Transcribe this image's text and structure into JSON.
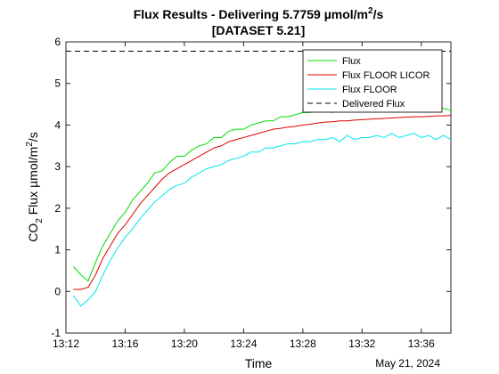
{
  "chart_data": {
    "type": "line",
    "title_main": "Flux Results - Delivering 5.7759 µmol/m",
    "title_sup": "2",
    "title_tail": "/s",
    "title_line2": "[DATASET 5.21]",
    "xlabel": "Time",
    "date_label": "May 21, 2024",
    "ylabel_parts": [
      "CO",
      "2",
      " Flux µmol/m",
      "2",
      "/s"
    ],
    "xlim": [
      "13:12",
      "13:38"
    ],
    "ylim": [
      -1,
      6
    ],
    "x_ticks": [
      "13:12",
      "13:16",
      "13:20",
      "13:24",
      "13:28",
      "13:32",
      "13:36"
    ],
    "y_ticks": [
      -1,
      0,
      1,
      2,
      3,
      4,
      5,
      6
    ],
    "legend_position": "top-right",
    "grid": false,
    "delivered_flux": 5.7759,
    "series": [
      {
        "name": "Flux",
        "color": "#00dd00",
        "points": [
          [
            "13:12:30",
            0.6
          ],
          [
            "13:13:00",
            0.4
          ],
          [
            "13:13:30",
            0.25
          ],
          [
            "13:14:00",
            0.7
          ],
          [
            "13:14:30",
            1.1
          ],
          [
            "13:15:00",
            1.4
          ],
          [
            "13:15:30",
            1.7
          ],
          [
            "13:16:00",
            1.9
          ],
          [
            "13:16:30",
            2.2
          ],
          [
            "13:17:00",
            2.4
          ],
          [
            "13:17:30",
            2.6
          ],
          [
            "13:18:00",
            2.85
          ],
          [
            "13:18:30",
            2.9
          ],
          [
            "13:19:00",
            3.1
          ],
          [
            "13:19:30",
            3.25
          ],
          [
            "13:20:00",
            3.25
          ],
          [
            "13:20:30",
            3.4
          ],
          [
            "13:21:00",
            3.5
          ],
          [
            "13:21:30",
            3.55
          ],
          [
            "13:22:00",
            3.7
          ],
          [
            "13:22:30",
            3.7
          ],
          [
            "13:23:00",
            3.85
          ],
          [
            "13:23:30",
            3.9
          ],
          [
            "13:24:00",
            3.9
          ],
          [
            "13:24:30",
            4.0
          ],
          [
            "13:25:00",
            4.05
          ],
          [
            "13:25:30",
            4.1
          ],
          [
            "13:26:00",
            4.1
          ],
          [
            "13:26:30",
            4.2
          ],
          [
            "13:27:00",
            4.2
          ],
          [
            "13:27:30",
            4.25
          ],
          [
            "13:28:00",
            4.3
          ],
          [
            "13:28:30",
            4.3
          ],
          [
            "13:29:00",
            4.35
          ],
          [
            "13:29:30",
            4.35
          ],
          [
            "13:30:00",
            4.3
          ],
          [
            "13:30:30",
            4.4
          ],
          [
            "13:31:00",
            4.4
          ],
          [
            "13:31:30",
            4.35
          ],
          [
            "13:32:00",
            4.45
          ],
          [
            "13:32:30",
            4.35
          ],
          [
            "13:33:00",
            4.4
          ],
          [
            "13:33:30",
            4.5
          ],
          [
            "13:34:00",
            4.4
          ],
          [
            "13:34:30",
            4.45
          ],
          [
            "13:35:00",
            4.4
          ],
          [
            "13:35:30",
            4.45
          ],
          [
            "13:36:00",
            4.4
          ],
          [
            "13:36:30",
            4.5
          ],
          [
            "13:37:00",
            4.45
          ],
          [
            "13:37:30",
            4.4
          ],
          [
            "13:38:00",
            4.35
          ]
        ]
      },
      {
        "name": "Flux FLOOR LICOR",
        "color": "#dd0000",
        "points": [
          [
            "13:12:30",
            0.05
          ],
          [
            "13:13:00",
            0.05
          ],
          [
            "13:13:30",
            0.1
          ],
          [
            "13:14:00",
            0.4
          ],
          [
            "13:14:30",
            0.8
          ],
          [
            "13:15:00",
            1.1
          ],
          [
            "13:15:30",
            1.4
          ],
          [
            "13:16:00",
            1.6
          ],
          [
            "13:16:30",
            1.85
          ],
          [
            "13:17:00",
            2.1
          ],
          [
            "13:17:30",
            2.3
          ],
          [
            "13:18:00",
            2.5
          ],
          [
            "13:18:30",
            2.7
          ],
          [
            "13:19:00",
            2.85
          ],
          [
            "13:19:30",
            2.95
          ],
          [
            "13:20:00",
            3.05
          ],
          [
            "13:20:30",
            3.15
          ],
          [
            "13:21:00",
            3.25
          ],
          [
            "13:21:30",
            3.35
          ],
          [
            "13:22:00",
            3.45
          ],
          [
            "13:22:30",
            3.5
          ],
          [
            "13:23:00",
            3.6
          ],
          [
            "13:23:30",
            3.65
          ],
          [
            "13:24:00",
            3.7
          ],
          [
            "13:24:30",
            3.75
          ],
          [
            "13:25:00",
            3.8
          ],
          [
            "13:25:30",
            3.85
          ],
          [
            "13:26:00",
            3.9
          ],
          [
            "13:26:30",
            3.92
          ],
          [
            "13:27:00",
            3.95
          ],
          [
            "13:27:30",
            3.97
          ],
          [
            "13:28:00",
            4.0
          ],
          [
            "13:28:30",
            4.02
          ],
          [
            "13:29:00",
            4.05
          ],
          [
            "13:29:30",
            4.07
          ],
          [
            "13:30:00",
            4.08
          ],
          [
            "13:30:30",
            4.1
          ],
          [
            "13:31:00",
            4.1
          ],
          [
            "13:31:30",
            4.12
          ],
          [
            "13:32:00",
            4.13
          ],
          [
            "13:32:30",
            4.14
          ],
          [
            "13:33:00",
            4.15
          ],
          [
            "13:33:30",
            4.16
          ],
          [
            "13:34:00",
            4.17
          ],
          [
            "13:34:30",
            4.18
          ],
          [
            "13:35:00",
            4.19
          ],
          [
            "13:35:30",
            4.2
          ],
          [
            "13:36:00",
            4.2
          ],
          [
            "13:36:30",
            4.21
          ],
          [
            "13:37:00",
            4.22
          ],
          [
            "13:37:30",
            4.22
          ],
          [
            "13:38:00",
            4.23
          ]
        ]
      },
      {
        "name": "Flux FLOOR",
        "color": "#00e5ee",
        "points": [
          [
            "13:12:30",
            -0.1
          ],
          [
            "13:13:00",
            -0.35
          ],
          [
            "13:13:30",
            -0.2
          ],
          [
            "13:14:00",
            0.0
          ],
          [
            "13:14:30",
            0.4
          ],
          [
            "13:15:00",
            0.75
          ],
          [
            "13:15:30",
            1.05
          ],
          [
            "13:16:00",
            1.3
          ],
          [
            "13:16:30",
            1.5
          ],
          [
            "13:17:00",
            1.75
          ],
          [
            "13:17:30",
            1.95
          ],
          [
            "13:18:00",
            2.15
          ],
          [
            "13:18:30",
            2.3
          ],
          [
            "13:19:00",
            2.45
          ],
          [
            "13:19:30",
            2.55
          ],
          [
            "13:20:00",
            2.6
          ],
          [
            "13:20:30",
            2.75
          ],
          [
            "13:21:00",
            2.85
          ],
          [
            "13:21:30",
            2.95
          ],
          [
            "13:22:00",
            3.0
          ],
          [
            "13:22:30",
            3.05
          ],
          [
            "13:23:00",
            3.15
          ],
          [
            "13:23:30",
            3.2
          ],
          [
            "13:24:00",
            3.25
          ],
          [
            "13:24:30",
            3.35
          ],
          [
            "13:25:00",
            3.35
          ],
          [
            "13:25:30",
            3.45
          ],
          [
            "13:26:00",
            3.45
          ],
          [
            "13:26:30",
            3.5
          ],
          [
            "13:27:00",
            3.55
          ],
          [
            "13:27:30",
            3.55
          ],
          [
            "13:28:00",
            3.6
          ],
          [
            "13:28:30",
            3.6
          ],
          [
            "13:29:00",
            3.65
          ],
          [
            "13:29:30",
            3.65
          ],
          [
            "13:30:00",
            3.7
          ],
          [
            "13:30:30",
            3.6
          ],
          [
            "13:31:00",
            3.75
          ],
          [
            "13:31:30",
            3.65
          ],
          [
            "13:32:00",
            3.7
          ],
          [
            "13:32:30",
            3.7
          ],
          [
            "13:33:00",
            3.75
          ],
          [
            "13:33:30",
            3.7
          ],
          [
            "13:34:00",
            3.8
          ],
          [
            "13:34:30",
            3.7
          ],
          [
            "13:35:00",
            3.75
          ],
          [
            "13:35:30",
            3.8
          ],
          [
            "13:36:00",
            3.7
          ],
          [
            "13:36:30",
            3.75
          ],
          [
            "13:37:00",
            3.65
          ],
          [
            "13:37:30",
            3.75
          ],
          [
            "13:38:00",
            3.65
          ]
        ]
      }
    ],
    "reference_line": {
      "name": "Delivered Flux",
      "color": "#000000",
      "style": "dashed"
    }
  }
}
